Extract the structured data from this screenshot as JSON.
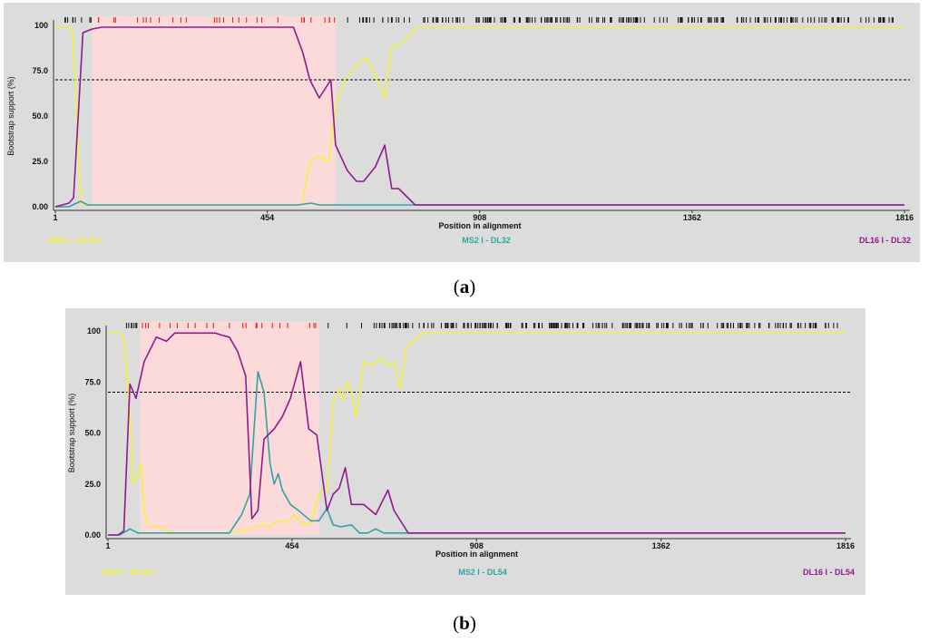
{
  "panels": [
    {
      "caption": "a",
      "chart_data": {
        "type": "line",
        "xlabel": "Position in alignment",
        "ylabel": "Bootstrap support (%)",
        "xlim": [
          1,
          1816
        ],
        "ylim": [
          0,
          100
        ],
        "x_ticks": [
          "1",
          "454",
          "908",
          "1362",
          "1816"
        ],
        "y_ticks": [
          "0.00",
          "25.0",
          "50.0",
          "75.0",
          "100"
        ],
        "threshold": 70,
        "grid": false,
        "highlight_region": [
          80,
          600
        ],
        "series": [
          {
            "name": "MS2 I - DL16 I",
            "color": "#f2f23c",
            "points": [
              [
                1,
                99
              ],
              [
                30,
                99
              ],
              [
                38,
                97
              ],
              [
                45,
                60
              ],
              [
                55,
                2
              ],
              [
                70,
                1
              ],
              [
                450,
                1
              ],
              [
                528,
                1
              ],
              [
                545,
                25
              ],
              [
                560,
                28
              ],
              [
                575,
                26
              ],
              [
                585,
                25
              ],
              [
                600,
                55
              ],
              [
                620,
                70
              ],
              [
                645,
                78
              ],
              [
                665,
                82
              ],
              [
                685,
                72
              ],
              [
                705,
                60
              ],
              [
                720,
                88
              ],
              [
                740,
                90
              ],
              [
                775,
                99
              ],
              [
                1816,
                99
              ]
            ]
          },
          {
            "name": "MS2 I - DL32",
            "color": "#2fa3a3",
            "points": [
              [
                1,
                0
              ],
              [
                30,
                0
              ],
              [
                55,
                3
              ],
              [
                70,
                1
              ],
              [
                520,
                1
              ],
              [
                548,
                2
              ],
              [
                565,
                1
              ],
              [
                1816,
                1
              ]
            ]
          },
          {
            "name": "DL16 I - DL32",
            "color": "#8e1a8e",
            "points": [
              [
                1,
                0
              ],
              [
                30,
                2
              ],
              [
                40,
                5
              ],
              [
                60,
                96
              ],
              [
                80,
                98
              ],
              [
                100,
                99
              ],
              [
                510,
                99
              ],
              [
                530,
                85
              ],
              [
                545,
                70
              ],
              [
                565,
                60
              ],
              [
                590,
                70
              ],
              [
                600,
                34
              ],
              [
                625,
                20
              ],
              [
                645,
                14
              ],
              [
                660,
                14
              ],
              [
                685,
                22
              ],
              [
                705,
                34
              ],
              [
                720,
                10
              ],
              [
                735,
                10
              ],
              [
                770,
                1
              ],
              [
                1816,
                1
              ]
            ]
          }
        ]
      }
    },
    {
      "caption": "b",
      "chart_data": {
        "type": "line",
        "xlabel": "Position in alignment",
        "ylabel": "Bootstrap support (%)",
        "xlim": [
          1,
          1816
        ],
        "ylim": [
          0,
          100
        ],
        "x_ticks": [
          "1",
          "454",
          "908",
          "1362",
          "1816"
        ],
        "y_ticks": [
          "0.00",
          "25.0",
          "50.0",
          "75.0",
          "100"
        ],
        "threshold": 70,
        "grid": false,
        "highlight_region": [
          80,
          520
        ],
        "series": [
          {
            "name": "MS2 I - DL16 I",
            "color": "#f2f23c",
            "points": [
              [
                1,
                99
              ],
              [
                30,
                99
              ],
              [
                40,
                97
              ],
              [
                55,
                60
              ],
              [
                62,
                25
              ],
              [
                75,
                30
              ],
              [
                82,
                35
              ],
              [
                90,
                12
              ],
              [
                100,
                5
              ],
              [
                130,
                4
              ],
              [
                160,
                1
              ],
              [
                300,
                1
              ],
              [
                350,
                3
              ],
              [
                380,
                5
              ],
              [
                400,
                4
              ],
              [
                420,
                7
              ],
              [
                440,
                6
              ],
              [
                460,
                10
              ],
              [
                480,
                5
              ],
              [
                500,
                6
              ],
              [
                520,
                20
              ],
              [
                540,
                22
              ],
              [
                555,
                65
              ],
              [
                570,
                72
              ],
              [
                580,
                66
              ],
              [
                590,
                75
              ],
              [
                600,
                70
              ],
              [
                612,
                58
              ],
              [
                630,
                85
              ],
              [
                650,
                83
              ],
              [
                670,
                87
              ],
              [
                690,
                83
              ],
              [
                705,
                85
              ],
              [
                720,
                72
              ],
              [
                735,
                92
              ],
              [
                775,
                99
              ],
              [
                1816,
                99
              ]
            ]
          },
          {
            "name": "MS2 I - DL54",
            "color": "#2fa3a3",
            "points": [
              [
                1,
                0
              ],
              [
                30,
                0
              ],
              [
                55,
                3
              ],
              [
                75,
                1
              ],
              [
                300,
                1
              ],
              [
                330,
                10
              ],
              [
                350,
                20
              ],
              [
                370,
                80
              ],
              [
                385,
                70
              ],
              [
                400,
                35
              ],
              [
                410,
                25
              ],
              [
                420,
                30
              ],
              [
                430,
                22
              ],
              [
                450,
                15
              ],
              [
                470,
                12
              ],
              [
                500,
                7
              ],
              [
                520,
                7
              ],
              [
                540,
                13
              ],
              [
                555,
                5
              ],
              [
                575,
                4
              ],
              [
                600,
                5
              ],
              [
                620,
                1
              ],
              [
                640,
                1
              ],
              [
                660,
                3
              ],
              [
                680,
                1
              ],
              [
                1816,
                1
              ]
            ]
          },
          {
            "name": "DL16 I - DL54",
            "color": "#8e1a8e",
            "points": [
              [
                1,
                0
              ],
              [
                25,
                0
              ],
              [
                40,
                2
              ],
              [
                55,
                74
              ],
              [
                70,
                67
              ],
              [
                90,
                85
              ],
              [
                120,
                97
              ],
              [
                145,
                95
              ],
              [
                165,
                99
              ],
              [
                265,
                99
              ],
              [
                280,
                98
              ],
              [
                300,
                97
              ],
              [
                320,
                90
              ],
              [
                340,
                78
              ],
              [
                355,
                8
              ],
              [
                370,
                12
              ],
              [
                385,
                47
              ],
              [
                410,
                52
              ],
              [
                430,
                58
              ],
              [
                450,
                67
              ],
              [
                475,
                85
              ],
              [
                495,
                52
              ],
              [
                515,
                49
              ],
              [
                540,
                12
              ],
              [
                555,
                20
              ],
              [
                570,
                23
              ],
              [
                585,
                33
              ],
              [
                600,
                15
              ],
              [
                630,
                15
              ],
              [
                660,
                10
              ],
              [
                690,
                22
              ],
              [
                705,
                12
              ],
              [
                740,
                1
              ],
              [
                1816,
                1
              ]
            ]
          }
        ]
      }
    }
  ]
}
